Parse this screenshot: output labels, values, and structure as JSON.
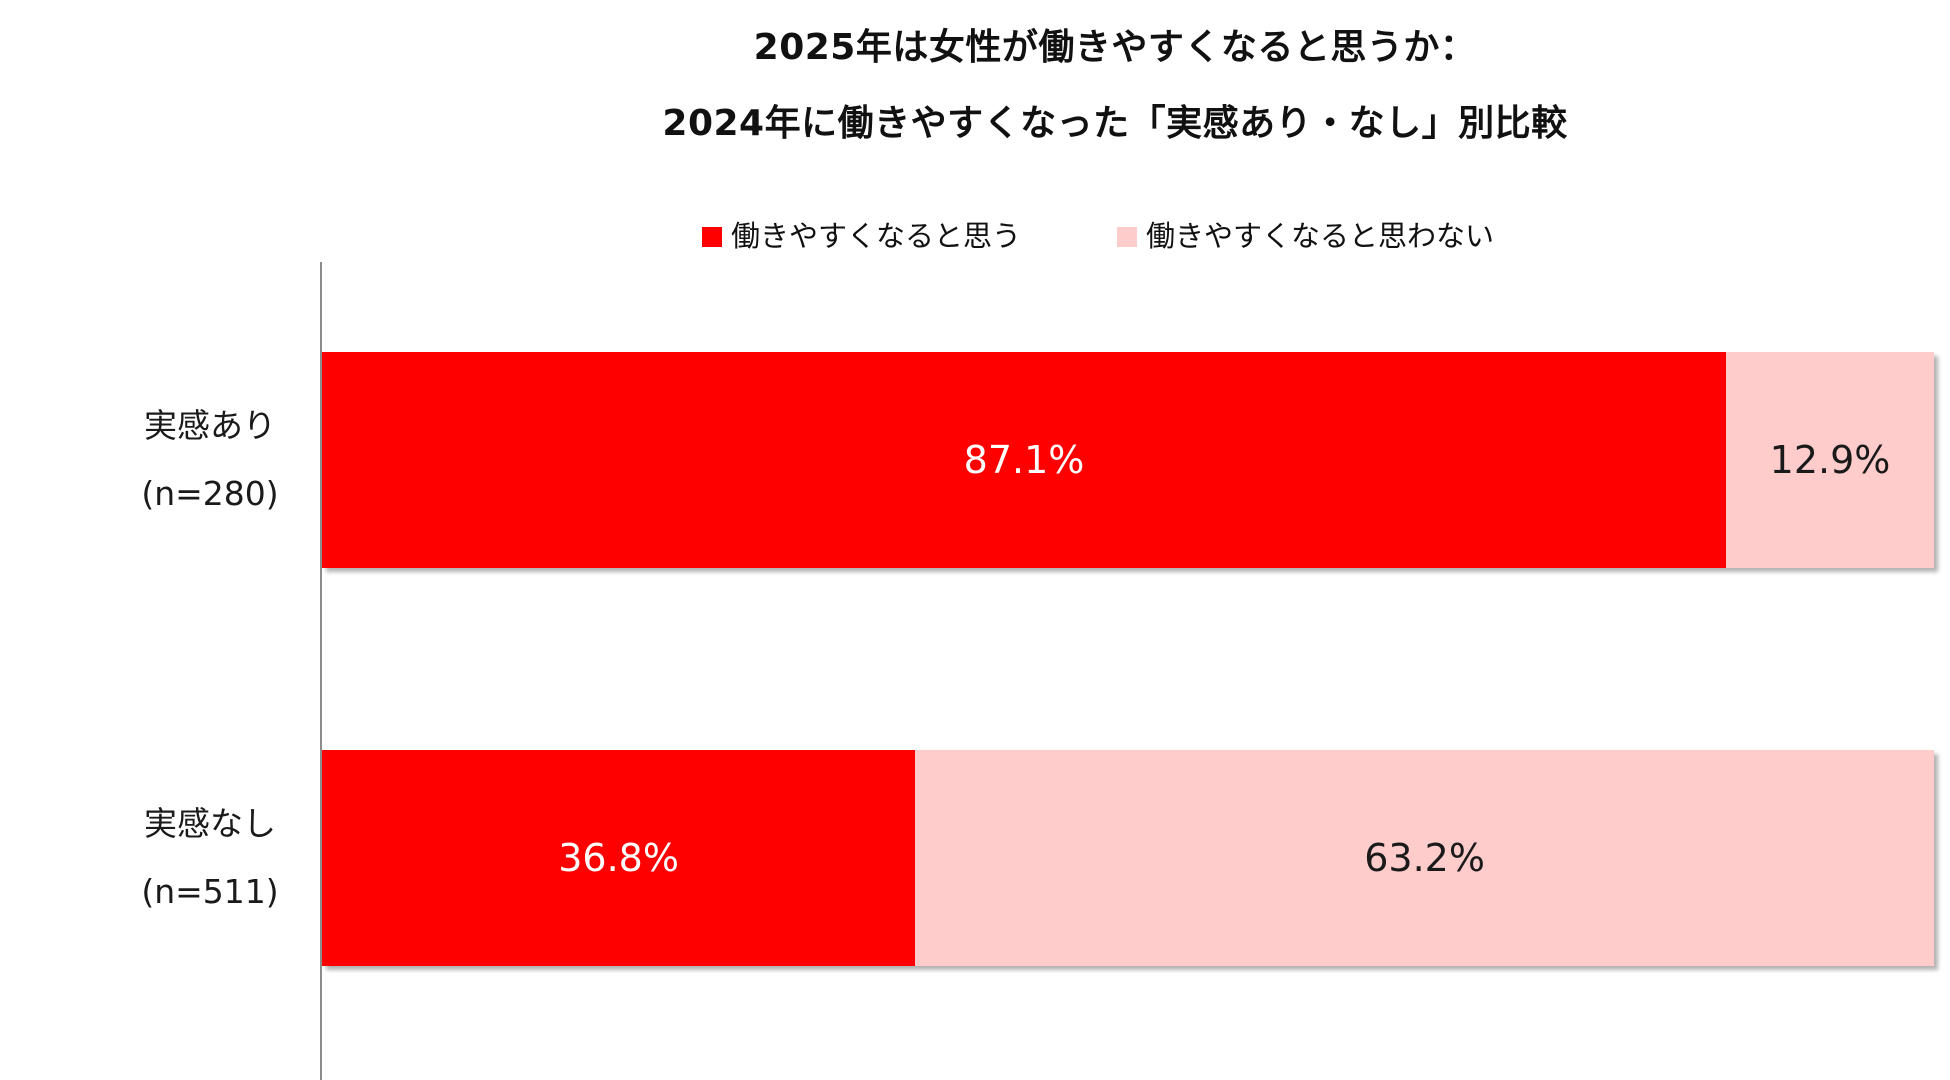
{
  "chart_data": {
    "type": "bar",
    "orientation": "horizontal",
    "stacked": "100%",
    "title": "2025年は女性が働きやすくなると思うか：",
    "subtitle": "2024年に働きやすくなった「実感あり・なし」別比較",
    "categories": [
      {
        "name": "実感あり",
        "n": "(n=280)"
      },
      {
        "name": "実感なし",
        "n": "(n=511)"
      }
    ],
    "series": [
      {
        "name": "働きやすくなると思う",
        "color": "#ff0000",
        "values": [
          87.1,
          36.8
        ]
      },
      {
        "name": "働きやすくなると思わない",
        "color": "#ffcccc",
        "values": [
          12.9,
          63.2
        ]
      }
    ],
    "value_labels": [
      [
        "87.1%",
        "36.8%"
      ],
      [
        "12.9%",
        "63.2%"
      ]
    ],
    "xlim": [
      0,
      100
    ],
    "grid": false,
    "legend_position": "top"
  }
}
